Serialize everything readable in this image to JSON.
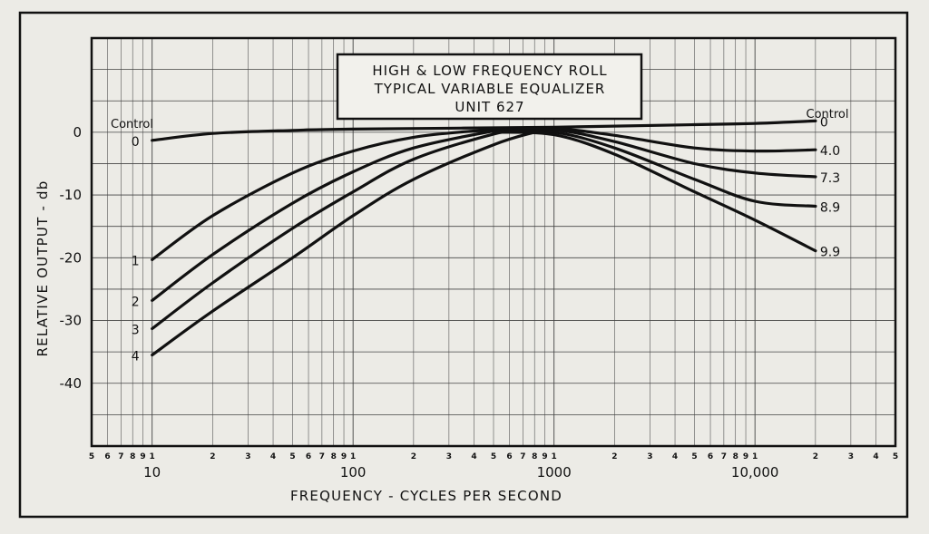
{
  "chart_data": {
    "type": "line",
    "title": [
      "HIGH & LOW FREQUENCY ROLL",
      "TYPICAL VARIABLE EQUALIZER",
      "UNIT 627"
    ],
    "xlabel": "FREQUENCY - CYCLES PER SECOND",
    "ylabel": "RELATIVE OUTPUT - db",
    "x_scale": "log",
    "xlim": [
      5,
      50000
    ],
    "ylim": [
      -50,
      15
    ],
    "grid": true,
    "yticks": [
      0,
      -10,
      -20,
      -30,
      -40
    ],
    "ytick_labels": [
      "0",
      "-10",
      "-20",
      "-30",
      "-40"
    ],
    "x_major_ticks": [
      {
        "value": 10,
        "label": "10"
      },
      {
        "value": 100,
        "label": "100"
      },
      {
        "value": 1000,
        "label": "1000"
      },
      {
        "value": 10000,
        "label": "10,000"
      }
    ],
    "x_minor_tick_labels": [
      {
        "value": 5,
        "label": "5"
      },
      {
        "value": 6,
        "label": "6"
      },
      {
        "value": 7,
        "label": "7"
      },
      {
        "value": 8,
        "label": "8"
      },
      {
        "value": 9,
        "label": "9"
      },
      {
        "value": 10,
        "label": "1"
      },
      {
        "value": 20,
        "label": "2"
      },
      {
        "value": 30,
        "label": "3"
      },
      {
        "value": 40,
        "label": "4"
      },
      {
        "value": 50,
        "label": "5"
      },
      {
        "value": 60,
        "label": "6"
      },
      {
        "value": 70,
        "label": "7"
      },
      {
        "value": 80,
        "label": "8"
      },
      {
        "value": 90,
        "label": "9"
      },
      {
        "value": 100,
        "label": "1"
      },
      {
        "value": 200,
        "label": "2"
      },
      {
        "value": 300,
        "label": "3"
      },
      {
        "value": 400,
        "label": "4"
      },
      {
        "value": 500,
        "label": "5"
      },
      {
        "value": 600,
        "label": "6"
      },
      {
        "value": 700,
        "label": "7"
      },
      {
        "value": 800,
        "label": "8"
      },
      {
        "value": 900,
        "label": "9"
      },
      {
        "value": 1000,
        "label": "1"
      },
      {
        "value": 2000,
        "label": "2"
      },
      {
        "value": 3000,
        "label": "3"
      },
      {
        "value": 4000,
        "label": "4"
      },
      {
        "value": 5000,
        "label": "5"
      },
      {
        "value": 6000,
        "label": "6"
      },
      {
        "value": 7000,
        "label": "7"
      },
      {
        "value": 8000,
        "label": "8"
      },
      {
        "value": 9000,
        "label": "9"
      },
      {
        "value": 10000,
        "label": "1"
      },
      {
        "value": 20000,
        "label": "2"
      },
      {
        "value": 30000,
        "label": "3"
      },
      {
        "value": 40000,
        "label": "4"
      },
      {
        "value": 50000,
        "label": "5"
      }
    ],
    "control_label_left": "Control",
    "control_label_right": "Control",
    "low_frequency_series": [
      {
        "name": "0",
        "points": [
          [
            10,
            -1.3
          ],
          [
            20,
            -0.2
          ],
          [
            50,
            0.3
          ],
          [
            100,
            0.5
          ],
          [
            1000,
            0.8
          ],
          [
            5000,
            1.2
          ],
          [
            10000,
            1.4
          ],
          [
            20000,
            1.8
          ]
        ]
      },
      {
        "name": "1",
        "points": [
          [
            10,
            -20.3
          ],
          [
            20,
            -13.3
          ],
          [
            50,
            -6.5
          ],
          [
            100,
            -3.0
          ],
          [
            200,
            -0.8
          ],
          [
            400,
            0.2
          ],
          [
            500,
            0.3
          ]
        ]
      },
      {
        "name": "2",
        "points": [
          [
            10,
            -26.8
          ],
          [
            20,
            -19.5
          ],
          [
            50,
            -11.3
          ],
          [
            100,
            -6.3
          ],
          [
            200,
            -2.5
          ],
          [
            500,
            0.2
          ],
          [
            600,
            0.3
          ]
        ]
      },
      {
        "name": "3",
        "points": [
          [
            10,
            -31.3
          ],
          [
            20,
            -24.0
          ],
          [
            50,
            -15.3
          ],
          [
            100,
            -9.5
          ],
          [
            200,
            -4.3
          ],
          [
            500,
            -0.3
          ],
          [
            700,
            0.3
          ]
        ]
      },
      {
        "name": "4",
        "points": [
          [
            10,
            -35.5
          ],
          [
            20,
            -28.5
          ],
          [
            50,
            -20.0
          ],
          [
            100,
            -13.3
          ],
          [
            200,
            -7.5
          ],
          [
            500,
            -2.0
          ],
          [
            800,
            0.0
          ],
          [
            900,
            0.3
          ]
        ]
      }
    ],
    "high_frequency_series": [
      {
        "name": "4.0",
        "points": [
          [
            500,
            0.5
          ],
          [
            1000,
            0.6
          ],
          [
            2000,
            -0.5
          ],
          [
            5000,
            -2.5
          ],
          [
            10000,
            -3.0
          ],
          [
            20000,
            -2.8
          ]
        ]
      },
      {
        "name": "7.3",
        "points": [
          [
            500,
            0.3
          ],
          [
            1000,
            0.4
          ],
          [
            2000,
            -1.5
          ],
          [
            5000,
            -5.0
          ],
          [
            10000,
            -6.5
          ],
          [
            20000,
            -7.1
          ]
        ]
      },
      {
        "name": "8.9",
        "points": [
          [
            500,
            0.1
          ],
          [
            1000,
            0.0
          ],
          [
            2000,
            -2.5
          ],
          [
            5000,
            -7.5
          ],
          [
            10000,
            -11.0
          ],
          [
            20000,
            -11.8
          ]
        ]
      },
      {
        "name": "9.9",
        "points": [
          [
            500,
            0.0
          ],
          [
            1000,
            -0.4
          ],
          [
            2000,
            -3.5
          ],
          [
            5000,
            -9.5
          ],
          [
            10000,
            -14.0
          ],
          [
            20000,
            -18.9
          ]
        ]
      }
    ]
  }
}
